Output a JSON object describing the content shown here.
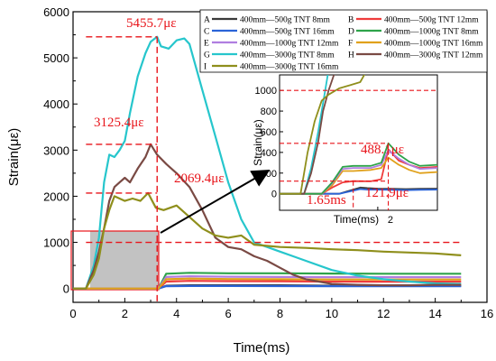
{
  "chart_data": {
    "type": "line",
    "xlabel": "Time(ms)",
    "ylabel": "Strain(με)",
    "xlim": [
      0,
      16
    ],
    "ylim": [
      -300,
      6000
    ],
    "x_ticks": [
      "0",
      "2",
      "4",
      "6",
      "8",
      "10",
      "12",
      "14",
      "16"
    ],
    "y_ticks": [
      "0",
      "1000",
      "2000",
      "3000",
      "4000",
      "5000",
      "6000"
    ],
    "reference_lines": {
      "y": [
        1000,
        2069.4,
        3125.4,
        5455.7
      ],
      "x": [
        3.25
      ]
    },
    "annotations": [
      "5455.7με",
      "3125.4με",
      "2069.4με"
    ],
    "legend": [
      {
        "letter": "A",
        "label": "400mm—500g TNT 8mm",
        "color": "#3a3a3a"
      },
      {
        "letter": "B",
        "label": "400mm—500g TNT 12mm",
        "color": "#ef3b3b"
      },
      {
        "letter": "C",
        "label": "400mm—500g TNT 16mm",
        "color": "#2b64d8"
      },
      {
        "letter": "D",
        "label": "400mm—1000g TNT 8mm",
        "color": "#2ea34a"
      },
      {
        "letter": "E",
        "label": "400mm—1000g TNT 12mm",
        "color": "#b07ee0"
      },
      {
        "letter": "F",
        "label": "400mm—1000g TNT 16mm",
        "color": "#e0a11b"
      },
      {
        "letter": "G",
        "label": "400mm—3000g TNT 8mm",
        "color": "#26c6cc"
      },
      {
        "letter": "H",
        "label": "400mm—3000g TNT 12mm",
        "color": "#7a4a44"
      },
      {
        "letter": "I",
        "label": "400mm—3000g TNT 16mm",
        "color": "#8f8f1c"
      }
    ],
    "series": [
      {
        "name": "400mm—500g TNT 8mm",
        "color": "#3a3a3a",
        "x": [
          0,
          0.5,
          1.0,
          2.0,
          3.3,
          3.6,
          4.5,
          6,
          8,
          10,
          12,
          15
        ],
        "y": [
          0,
          0,
          0,
          0,
          0,
          60,
          70,
          70,
          70,
          60,
          60,
          60
        ]
      },
      {
        "name": "400mm—500g TNT 12mm",
        "color": "#ef3b3b",
        "x": [
          0,
          0.5,
          1.0,
          2.0,
          3.3,
          3.6,
          4.5,
          6,
          8,
          10,
          12,
          15
        ],
        "y": [
          0,
          0,
          0,
          0,
          0,
          150,
          165,
          160,
          158,
          150,
          148,
          150
        ]
      },
      {
        "name": "400mm—500g TNT 16mm",
        "color": "#2b64d8",
        "x": [
          0,
          0.5,
          1.0,
          2.0,
          3.3,
          3.6,
          4.5,
          6,
          8,
          10,
          12,
          15
        ],
        "y": [
          0,
          0,
          0,
          0,
          0,
          50,
          55,
          55,
          52,
          50,
          50,
          50
        ]
      },
      {
        "name": "400mm—1000g TNT 8mm",
        "color": "#2ea34a",
        "x": [
          0,
          0.5,
          1.0,
          2.0,
          3.3,
          3.6,
          4.5,
          6,
          8,
          10,
          12,
          15
        ],
        "y": [
          0,
          0,
          0,
          0,
          0,
          320,
          340,
          330,
          330,
          325,
          320,
          320
        ]
      },
      {
        "name": "400mm—1000g TNT 12mm",
        "color": "#b07ee0",
        "x": [
          0,
          0.5,
          1.0,
          2.0,
          3.3,
          3.6,
          4.5,
          6,
          8,
          10,
          12,
          15
        ],
        "y": [
          0,
          0,
          0,
          0,
          0,
          250,
          265,
          255,
          250,
          245,
          245,
          245
        ]
      },
      {
        "name": "400mm—1000g TNT 16mm",
        "color": "#e0a11b",
        "x": [
          0,
          0.5,
          1.0,
          2.0,
          3.3,
          3.6,
          4.5,
          6,
          8,
          10,
          12,
          15
        ],
        "y": [
          0,
          0,
          0,
          0,
          0,
          200,
          215,
          205,
          200,
          195,
          195,
          195
        ]
      },
      {
        "name": "400mm—3000g TNT 8mm",
        "color": "#26c6cc",
        "x": [
          0,
          0.5,
          0.8,
          1.0,
          1.2,
          1.4,
          1.6,
          1.8,
          2.0,
          2.2,
          2.5,
          2.8,
          3.0,
          3.25,
          3.4,
          3.7,
          4.0,
          4.3,
          4.5,
          4.7,
          5.0,
          5.5,
          6.0,
          6.5,
          7.0,
          7.5,
          8.0,
          8.5,
          9.0,
          10.0,
          11.0,
          12.0,
          13.0,
          14.0,
          15.0
        ],
        "y": [
          0,
          0,
          500,
          1100,
          2300,
          2900,
          2850,
          3000,
          3200,
          3800,
          4600,
          5100,
          5350,
          5455.7,
          5250,
          5200,
          5380,
          5420,
          5300,
          4900,
          4300,
          3300,
          2300,
          1500,
          1000,
          900,
          800,
          700,
          600,
          400,
          280,
          200,
          150,
          110,
          100
        ]
      },
      {
        "name": "400mm—3000g TNT 12mm",
        "color": "#7a4a44",
        "x": [
          0,
          0.5,
          0.8,
          1.0,
          1.2,
          1.4,
          1.6,
          1.8,
          2.0,
          2.2,
          2.5,
          2.8,
          3.0,
          3.25,
          3.6,
          4.0,
          4.5,
          5.0,
          5.5,
          6.0,
          6.5,
          7.0,
          7.5,
          8.0,
          8.5,
          9.0,
          9.5,
          10.0,
          11.0,
          12.0,
          13.0,
          14.0,
          15.0
        ],
        "y": [
          0,
          0,
          400,
          800,
          1300,
          1900,
          2200,
          2300,
          2400,
          2300,
          2600,
          2850,
          3125.4,
          2900,
          2700,
          2500,
          2200,
          1700,
          1100,
          900,
          850,
          700,
          600,
          450,
          300,
          200,
          150,
          100,
          80,
          70,
          70,
          80,
          80
        ]
      },
      {
        "name": "400mm—3000g TNT 16mm",
        "color": "#8f8f1c",
        "x": [
          0,
          0.5,
          0.8,
          1.0,
          1.2,
          1.4,
          1.6,
          1.8,
          2.0,
          2.3,
          2.6,
          2.9,
          3.2,
          3.5,
          4.0,
          4.5,
          5.0,
          5.5,
          6.0,
          6.5,
          7.0,
          8.0,
          9.0,
          10.0,
          11.0,
          12.0,
          13.0,
          14.0,
          15.0
        ],
        "y": [
          0,
          0,
          300,
          650,
          1300,
          1700,
          2000,
          1950,
          1900,
          1950,
          1900,
          2069.4,
          1750,
          1700,
          1800,
          1550,
          1300,
          1150,
          1100,
          1150,
          950,
          900,
          880,
          850,
          830,
          800,
          780,
          760,
          720
        ]
      }
    ],
    "zoom_inset": {
      "xlabel": "Time(ms)",
      "ylabel": "Strain(με)",
      "x_ticks": [
        "2"
      ],
      "y_ticks": [
        "0",
        "200",
        "400",
        "600",
        "800",
        "1000"
      ],
      "annotations": [
        "488.1με",
        "121.9με",
        "1.65ms"
      ]
    }
  }
}
